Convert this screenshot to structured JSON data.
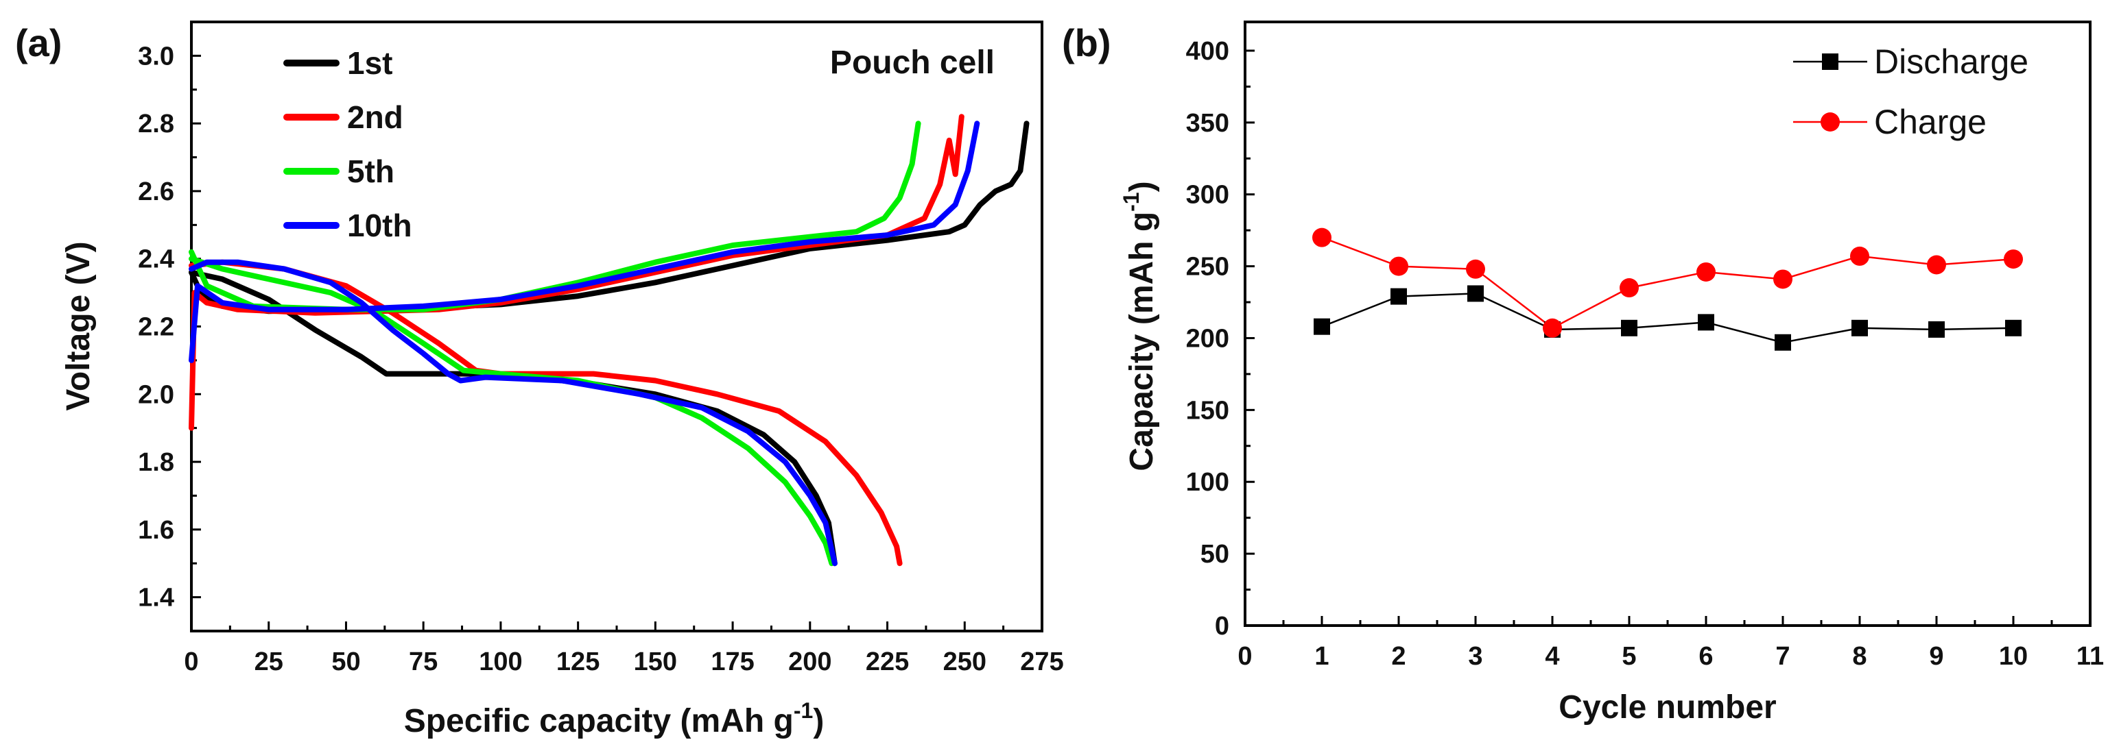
{
  "chart_data": [
    {
      "panel_label": "(a)",
      "type": "line",
      "annotation": "Pouch cell",
      "xlabel": "Specific capacity (mAh g",
      "xlabel_sup": "-1",
      "xlabel_end": ")",
      "ylabel": "Voltage (V)",
      "xlim": [
        0,
        275
      ],
      "ylim": [
        1.3,
        3.1
      ],
      "xticks": [
        "0",
        "25",
        "50",
        "75",
        "100",
        "125",
        "150",
        "175",
        "200",
        "225",
        "250",
        "275"
      ],
      "yticks": [
        "1.4",
        "1.6",
        "1.8",
        "2.0",
        "2.2",
        "2.4",
        "2.6",
        "2.8",
        "3.0"
      ],
      "series": [
        {
          "name": "1st",
          "color": "#000000",
          "discharge": [
            [
              0,
              2.36
            ],
            [
              10,
              2.34
            ],
            [
              25,
              2.28
            ],
            [
              40,
              2.19
            ],
            [
              55,
              2.11
            ],
            [
              63,
              2.06
            ],
            [
              66,
              2.06
            ],
            [
              90,
              2.06
            ],
            [
              110,
              2.05
            ],
            [
              130,
              2.03
            ],
            [
              150,
              2.0
            ],
            [
              170,
              1.95
            ],
            [
              185,
              1.88
            ],
            [
              195,
              1.8
            ],
            [
              202,
              1.7
            ],
            [
              206,
              1.62
            ],
            [
              208,
              1.5
            ]
          ],
          "charge": [
            [
              0,
              2.36
            ],
            [
              3,
              2.3
            ],
            [
              10,
              2.26
            ],
            [
              25,
              2.245
            ],
            [
              50,
              2.25
            ],
            [
              75,
              2.255
            ],
            [
              100,
              2.265
            ],
            [
              125,
              2.29
            ],
            [
              150,
              2.33
            ],
            [
              175,
              2.38
            ],
            [
              200,
              2.43
            ],
            [
              225,
              2.455
            ],
            [
              245,
              2.48
            ],
            [
              250,
              2.5
            ],
            [
              255,
              2.56
            ],
            [
              260,
              2.6
            ],
            [
              265,
              2.62
            ],
            [
              268,
              2.66
            ],
            [
              270,
              2.8
            ]
          ]
        },
        {
          "name": "2nd",
          "color": "#ff0000",
          "discharge": [
            [
              0,
              2.38
            ],
            [
              10,
              2.39
            ],
            [
              30,
              2.37
            ],
            [
              50,
              2.32
            ],
            [
              65,
              2.24
            ],
            [
              80,
              2.15
            ],
            [
              92,
              2.07
            ],
            [
              100,
              2.06
            ],
            [
              130,
              2.06
            ],
            [
              150,
              2.04
            ],
            [
              170,
              2.0
            ],
            [
              190,
              1.95
            ],
            [
              205,
              1.86
            ],
            [
              215,
              1.76
            ],
            [
              223,
              1.65
            ],
            [
              228,
              1.55
            ],
            [
              229,
              1.5
            ]
          ],
          "charge": [
            [
              0,
              1.9
            ],
            [
              1,
              2.3
            ],
            [
              5,
              2.27
            ],
            [
              15,
              2.25
            ],
            [
              40,
              2.24
            ],
            [
              60,
              2.245
            ],
            [
              80,
              2.25
            ],
            [
              100,
              2.27
            ],
            [
              125,
              2.31
            ],
            [
              150,
              2.36
            ],
            [
              175,
              2.41
            ],
            [
              200,
              2.44
            ],
            [
              225,
              2.47
            ],
            [
              237,
              2.52
            ],
            [
              242,
              2.62
            ],
            [
              245,
              2.75
            ],
            [
              247,
              2.65
            ],
            [
              249,
              2.82
            ]
          ]
        },
        {
          "name": "5th",
          "color": "#00ee00",
          "discharge": [
            [
              0,
              2.4
            ],
            [
              10,
              2.37
            ],
            [
              25,
              2.34
            ],
            [
              45,
              2.3
            ],
            [
              60,
              2.24
            ],
            [
              75,
              2.15
            ],
            [
              88,
              2.07
            ],
            [
              100,
              2.06
            ],
            [
              125,
              2.04
            ],
            [
              150,
              1.99
            ],
            [
              165,
              1.93
            ],
            [
              180,
              1.84
            ],
            [
              192,
              1.74
            ],
            [
              200,
              1.64
            ],
            [
              205,
              1.56
            ],
            [
              207,
              1.5
            ]
          ],
          "charge": [
            [
              0,
              2.42
            ],
            [
              5,
              2.32
            ],
            [
              20,
              2.26
            ],
            [
              50,
              2.25
            ],
            [
              75,
              2.25
            ],
            [
              100,
              2.28
            ],
            [
              125,
              2.33
            ],
            [
              150,
              2.39
            ],
            [
              175,
              2.44
            ],
            [
              200,
              2.465
            ],
            [
              215,
              2.48
            ],
            [
              224,
              2.52
            ],
            [
              229,
              2.58
            ],
            [
              233,
              2.68
            ],
            [
              235,
              2.8
            ]
          ]
        },
        {
          "name": "10th",
          "color": "#0000ff",
          "discharge": [
            [
              0,
              2.37
            ],
            [
              5,
              2.39
            ],
            [
              15,
              2.39
            ],
            [
              30,
              2.37
            ],
            [
              45,
              2.33
            ],
            [
              55,
              2.27
            ],
            [
              65,
              2.19
            ],
            [
              75,
              2.12
            ],
            [
              83,
              2.06
            ],
            [
              87,
              2.04
            ],
            [
              95,
              2.05
            ],
            [
              120,
              2.04
            ],
            [
              145,
              2.0
            ],
            [
              165,
              1.96
            ],
            [
              180,
              1.89
            ],
            [
              192,
              1.8
            ],
            [
              200,
              1.7
            ],
            [
              205,
              1.62
            ],
            [
              208,
              1.5
            ]
          ],
          "charge": [
            [
              0,
              2.1
            ],
            [
              2,
              2.32
            ],
            [
              10,
              2.27
            ],
            [
              25,
              2.25
            ],
            [
              50,
              2.25
            ],
            [
              75,
              2.26
            ],
            [
              100,
              2.28
            ],
            [
              125,
              2.32
            ],
            [
              150,
              2.37
            ],
            [
              175,
              2.42
            ],
            [
              200,
              2.45
            ],
            [
              225,
              2.47
            ],
            [
              240,
              2.5
            ],
            [
              247,
              2.56
            ],
            [
              251,
              2.66
            ],
            [
              254,
              2.8
            ]
          ]
        }
      ]
    },
    {
      "panel_label": "(b)",
      "type": "scatter-line",
      "xlabel": "Cycle number",
      "ylabel": "Capacity (mAh g",
      "ylabel_sup": "-1",
      "ylabel_end": ")",
      "xlim": [
        0,
        11
      ],
      "ylim": [
        0,
        420
      ],
      "xticks": [
        "0",
        "1",
        "2",
        "3",
        "4",
        "5",
        "6",
        "7",
        "8",
        "9",
        "10",
        "11"
      ],
      "yticks": [
        "0",
        "50",
        "100",
        "150",
        "200",
        "250",
        "300",
        "350",
        "400"
      ],
      "x": [
        1,
        2,
        3,
        4,
        5,
        6,
        7,
        8,
        9,
        10
      ],
      "series": [
        {
          "name": "Discharge",
          "color": "#000000",
          "marker": "square",
          "values": [
            208,
            229,
            231,
            206,
            207,
            211,
            197,
            207,
            206,
            207
          ]
        },
        {
          "name": "Charge",
          "color": "#ff0000",
          "marker": "circle",
          "values": [
            270,
            250,
            248,
            207,
            235,
            246,
            241,
            257,
            251,
            255
          ]
        }
      ]
    }
  ]
}
